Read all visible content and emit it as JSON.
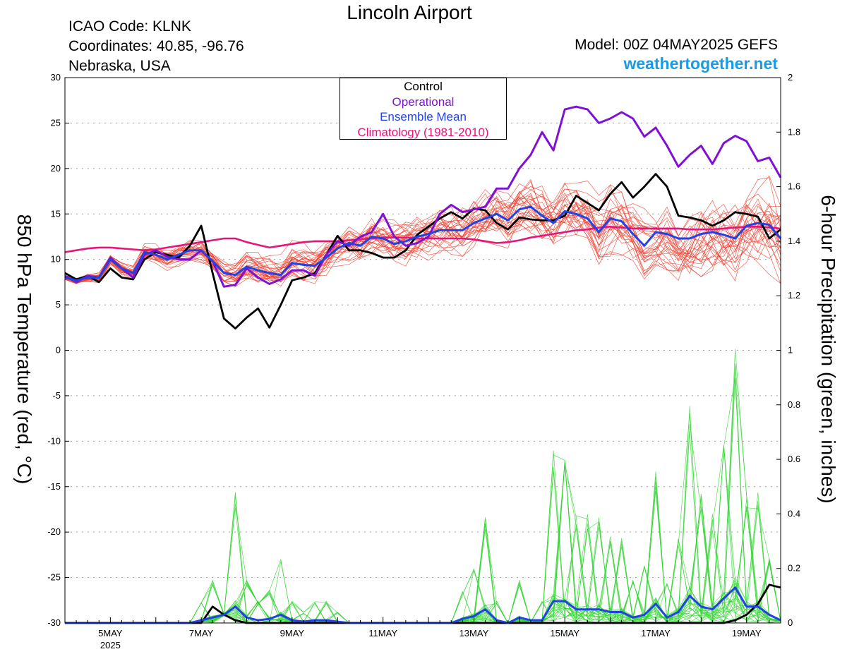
{
  "header": {
    "title": "Lincoln Airport",
    "icao": "ICAO Code: KLNK",
    "coordinates": "Coordinates: 40.85, -96.76",
    "region": "Nebraska, USA",
    "model": "Model: 00Z 04MAY2025 GEFS",
    "site": "weathertogether.net"
  },
  "legend": {
    "control": "Control",
    "operational": "Operational",
    "ensemble_mean": "Ensemble Mean",
    "climatology": "Climatology (1981-2010)"
  },
  "colors": {
    "control": "#000000",
    "operational": "#7f11d4",
    "ensemble_mean": "#2342e6",
    "climatology": "#e5157a",
    "members_temp": "#ee3b2b",
    "members_precip": "#2fd42f",
    "site": "#1a9be8"
  },
  "chart_data": {
    "type": "line",
    "xlabel": "",
    "ylabel": "850 hPa Temperature (red, °C)",
    "y2label": "6-hour Precipitation (green, inches)",
    "year_label": "2025",
    "xlim": [
      0,
      63
    ],
    "ylim": [
      -30,
      30
    ],
    "y2lim": [
      0,
      2
    ],
    "x_ticks": [
      {
        "x": 4,
        "label": "5MAY"
      },
      {
        "x": 12,
        "label": "7MAY"
      },
      {
        "x": 20,
        "label": "9MAY"
      },
      {
        "x": 28,
        "label": "11MAY"
      },
      {
        "x": 36,
        "label": "13MAY"
      },
      {
        "x": 44,
        "label": "15MAY"
      },
      {
        "x": 52,
        "label": "17MAY"
      },
      {
        "x": 60,
        "label": "19MAY"
      }
    ],
    "y_ticks": [
      30,
      25,
      20,
      15,
      10,
      5,
      0,
      -5,
      -10,
      -15,
      -20,
      -25,
      -30
    ],
    "y2_ticks": [
      2,
      1.8,
      1.6,
      1.4,
      1.2,
      1,
      0.8,
      0.6,
      0.4,
      0.2,
      0
    ],
    "grid": true,
    "series": [
      {
        "name": "Control",
        "axis": "temp",
        "values": [
          8.5,
          7.8,
          8.2,
          7.5,
          9.0,
          8.0,
          7.8,
          10.0,
          10.8,
          10.5,
          10.2,
          11.5,
          13.7,
          8.5,
          3.5,
          2.4,
          3.6,
          4.6,
          2.5,
          5.0,
          7.7,
          8.0,
          8.5,
          10.5,
          12.6,
          11.0,
          11.0,
          10.7,
          10.2,
          10.2,
          11.0,
          12.7,
          13.6,
          14.5,
          15.2,
          14.5,
          15.6,
          15.4,
          14.0,
          13.3,
          14.6,
          14.4,
          14.3,
          14.3,
          14.8,
          17.0,
          16.2,
          15.4,
          17.2,
          18.5,
          16.8,
          18.0,
          19.4,
          18.0,
          14.8,
          14.6,
          14.3,
          13.7,
          14.3,
          15.2,
          15.0,
          14.7,
          12.3,
          13.3
        ]
      },
      {
        "name": "Operational",
        "axis": "temp",
        "values": [
          8.2,
          7.5,
          8.2,
          8.0,
          10.2,
          9.0,
          8.0,
          10.5,
          11.0,
          10.3,
          10.0,
          10.0,
          11.0,
          9.8,
          7.0,
          7.2,
          9.0,
          8.0,
          7.3,
          7.8,
          8.8,
          8.8,
          8.2,
          10.5,
          12.0,
          11.5,
          12.5,
          13.0,
          15.0,
          12.5,
          11.5,
          11.8,
          12.5,
          15.0,
          16.0,
          15.2,
          15.5,
          15.8,
          17.8,
          17.8,
          20.0,
          21.5,
          24.0,
          22.0,
          26.5,
          26.8,
          26.5,
          25.0,
          25.5,
          26.2,
          25.5,
          23.5,
          24.5,
          22.5,
          20.2,
          21.5,
          22.5,
          20.5,
          22.8,
          23.6,
          23.0,
          20.8,
          21.2,
          19.0
        ]
      },
      {
        "name": "Ensemble Mean",
        "axis": "temp",
        "values": [
          8.0,
          7.7,
          8.0,
          8.0,
          10.0,
          9.0,
          8.5,
          10.8,
          10.5,
          10.0,
          10.5,
          11.0,
          11.0,
          9.8,
          8.5,
          8.3,
          9.2,
          8.8,
          8.5,
          8.3,
          9.6,
          9.4,
          9.3,
          10.2,
          11.2,
          11.8,
          11.5,
          12.5,
          12.3,
          11.7,
          12.0,
          12.5,
          12.8,
          13.2,
          13.2,
          13.2,
          14.0,
          14.5,
          15.0,
          14.3,
          15.5,
          15.8,
          14.8,
          14.0,
          15.3,
          15.0,
          14.5,
          13.0,
          14.5,
          14.2,
          12.8,
          11.5,
          13.0,
          12.8,
          12.3,
          12.3,
          12.8,
          13.0,
          12.7,
          12.3,
          13.7,
          14.0,
          13.8,
          12.3
        ]
      },
      {
        "name": "Climatology (1981-2010)",
        "axis": "temp",
        "values": [
          10.8,
          11.0,
          11.2,
          11.3,
          11.3,
          11.2,
          11.1,
          11.0,
          11.1,
          11.3,
          11.5,
          11.7,
          11.9,
          12.1,
          12.3,
          12.3,
          11.9,
          11.6,
          11.3,
          11.5,
          11.7,
          11.9,
          12.0,
          12.0,
          12.0,
          12.1,
          12.2,
          12.3,
          12.4,
          12.4,
          12.4,
          12.3,
          12.3,
          12.3,
          12.3,
          12.3,
          12.2,
          12.0,
          11.8,
          11.9,
          12.1,
          12.4,
          12.6,
          12.8,
          13.0,
          13.2,
          13.3,
          13.5,
          13.6,
          13.5,
          13.4,
          13.4,
          13.4,
          13.4,
          13.4,
          13.3,
          13.3,
          13.3,
          13.4,
          13.5,
          13.6,
          13.6,
          13.5,
          13.4
        ]
      },
      {
        "name": "Control precipitation",
        "axis": "precip",
        "values": [
          0,
          0,
          0,
          0,
          0,
          0,
          0,
          0,
          0,
          0,
          0,
          0,
          0,
          0.06,
          0.03,
          0.01,
          0,
          0,
          0,
          0,
          0,
          0,
          0,
          0,
          0,
          0,
          0,
          0,
          0,
          0,
          0,
          0,
          0,
          0,
          0,
          0,
          0,
          0,
          0,
          0,
          0,
          0,
          0,
          0,
          0,
          0,
          0,
          0,
          0,
          0,
          0,
          0,
          0,
          0,
          0,
          0,
          0,
          0,
          0,
          0.01,
          0.03,
          0.07,
          0.14,
          0.13
        ]
      },
      {
        "name": "Ensemble Mean precipitation",
        "axis": "precip",
        "values": [
          0,
          0,
          0,
          0,
          0,
          0,
          0,
          0,
          0,
          0,
          0,
          0,
          0.01,
          0.02,
          0.03,
          0.06,
          0.02,
          0.01,
          0.015,
          0.03,
          0.01,
          0.005,
          0.01,
          0.01,
          0.005,
          0,
          0,
          0,
          0,
          0,
          0,
          0,
          0,
          0,
          0,
          0.015,
          0.025,
          0.05,
          0.01,
          0,
          0.02,
          0.01,
          0.01,
          0.08,
          0.08,
          0.05,
          0.05,
          0.05,
          0.04,
          0.04,
          0.02,
          0.03,
          0.07,
          0.02,
          0.04,
          0.1,
          0.06,
          0.05,
          0.09,
          0.13,
          0.06,
          0.06,
          0.03,
          0.01
        ]
      }
    ]
  }
}
